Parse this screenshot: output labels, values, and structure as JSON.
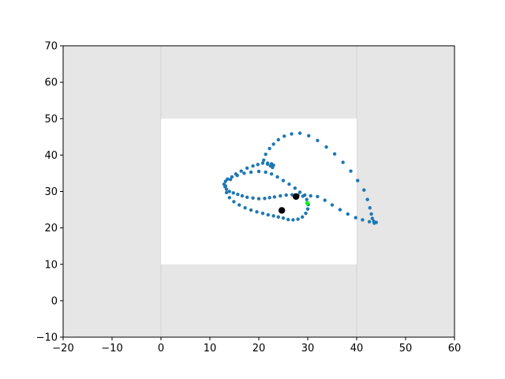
{
  "chart_data": {
    "type": "scatter",
    "title": "",
    "xlabel": "",
    "ylabel": "",
    "xlim": [
      -20,
      60
    ],
    "ylim": [
      -10,
      70
    ],
    "grid": false,
    "legend": "none",
    "x_ticks": [
      "−20",
      "−10",
      "0",
      "10",
      "20",
      "30",
      "40",
      "50",
      "60"
    ],
    "x_tick_values": [
      -20,
      -10,
      0,
      10,
      20,
      30,
      40,
      50,
      60
    ],
    "y_ticks": [
      "−10",
      "0",
      "10",
      "20",
      "30",
      "40",
      "50",
      "60",
      "70"
    ],
    "y_tick_values": [
      -10,
      0,
      10,
      20,
      30,
      40,
      50,
      60,
      70
    ],
    "background_color": "#e6e6e6",
    "arena": {
      "x": [
        0,
        40
      ],
      "y": [
        10,
        50
      ],
      "color": "#ffffff"
    },
    "guide_lines": {
      "x": [
        0,
        40
      ],
      "color": "#d9d9d9"
    },
    "series": [
      {
        "color": "#1f77b4",
        "marker_radius": 2.2,
        "x": [
          44.0,
          43.6,
          43.5,
          43.2,
          43.0,
          42.7,
          42.2,
          41.5,
          40.2,
          38.8,
          37.2,
          35.5,
          33.8,
          32.0,
          30.2,
          28.4,
          26.7,
          25.2,
          24.0,
          23.0,
          22.2,
          21.4,
          21.0,
          21.8,
          22.6,
          23.0,
          22.8,
          22.4,
          21.8,
          20.8,
          19.8,
          18.8,
          17.6,
          16.4,
          15.3,
          14.5,
          13.6,
          13.2,
          12.9,
          13.1,
          13.4,
          14.0,
          14.8,
          15.7,
          16.6,
          17.6,
          18.8,
          20.0,
          21.2,
          22.2,
          23.2,
          24.4,
          25.6,
          26.8,
          28.0,
          29.0,
          29.8,
          30.1,
          30.0,
          29.6,
          28.9,
          28.0,
          27.0,
          26.0,
          25.0,
          24.0,
          23.0,
          21.9,
          20.8,
          19.6,
          18.4,
          17.2,
          16.0,
          14.9,
          14.0,
          13.4,
          13.2,
          14.2,
          15.6,
          17.0,
          18.4,
          20.0,
          21.4,
          22.6,
          23.8,
          25.0,
          26.2,
          27.4,
          28.4,
          29.4,
          30.6,
          32.0,
          33.5,
          35.0,
          36.6,
          38.2,
          39.8,
          41.2,
          42.6,
          43.6
        ],
        "y": [
          21.5,
          21.3,
          21.8,
          22.6,
          23.8,
          25.5,
          27.8,
          30.4,
          33.0,
          35.6,
          38.0,
          40.3,
          42.2,
          44.0,
          45.3,
          46.0,
          45.8,
          45.2,
          44.2,
          43.0,
          41.8,
          40.2,
          38.6,
          37.8,
          37.6,
          37.2,
          36.6,
          37.0,
          37.5,
          37.8,
          37.4,
          37.0,
          36.4,
          35.6,
          34.8,
          34.0,
          33.4,
          32.8,
          32.0,
          31.3,
          30.6,
          30.0,
          29.6,
          29.2,
          28.8,
          28.4,
          28.2,
          28.0,
          28.1,
          28.3,
          28.5,
          28.8,
          29.0,
          29.1,
          29.0,
          28.7,
          27.8,
          26.4,
          25.2,
          24.0,
          23.0,
          22.4,
          22.2,
          22.3,
          22.7,
          23.0,
          23.3,
          23.6,
          24.0,
          24.4,
          24.9,
          25.5,
          26.3,
          27.2,
          28.3,
          29.7,
          31.5,
          33.3,
          34.4,
          35.0,
          35.3,
          35.5,
          35.3,
          34.8,
          34.0,
          33.0,
          32.0,
          30.9,
          29.8,
          29.0,
          28.8,
          28.6,
          27.6,
          26.3,
          25.0,
          23.8,
          22.8,
          22.2,
          21.7,
          21.5
        ]
      }
    ],
    "points": [
      {
        "x": 27.6,
        "y": 28.6,
        "color": "#000000",
        "radius": 4.2
      },
      {
        "x": 24.7,
        "y": 24.8,
        "color": "#000000",
        "radius": 4.2
      },
      {
        "x": 29.9,
        "y": 26.8,
        "color": "#00ff00",
        "radius": 2.6
      }
    ]
  }
}
